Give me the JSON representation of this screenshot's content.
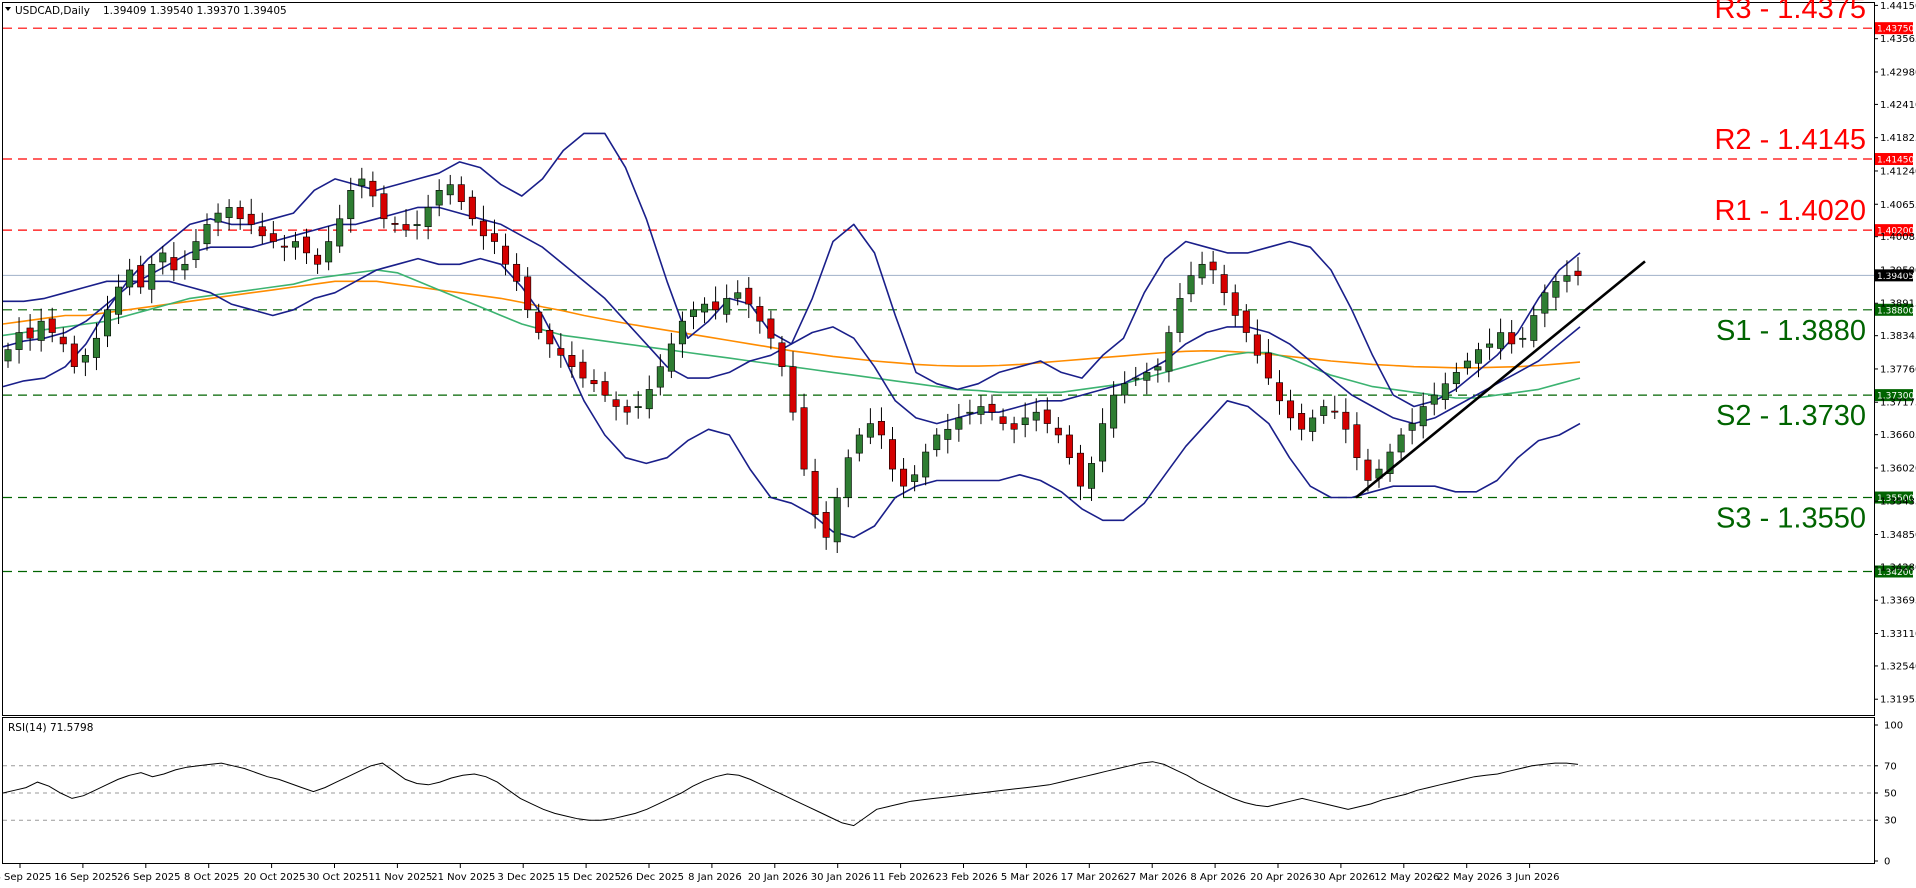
{
  "header": {
    "symbol": "USDCAD,Daily",
    "ohlc": "1.39409 1.39540 1.39370 1.39405"
  },
  "rsi_header": {
    "label": "RSI(14) 71.5798"
  },
  "colors": {
    "resistance": "#ff0000",
    "support": "#006400",
    "bull_candle": "#2e7d32",
    "bear_candle": "#d50000",
    "bollinger": "#1a1f8a",
    "ma_fast": "#3cb371",
    "ma_slow": "#ff8c00",
    "trendline": "#000000",
    "current_price": "#9fb0c8"
  },
  "chart_data": [
    {
      "type": "candlestick",
      "title": "USDCAD,Daily",
      "ylim": [
        1.3166,
        1.4421
      ],
      "y_ticks": [
        "1.44150",
        "1.43565",
        "1.42980",
        "1.42410",
        "1.41825",
        "1.41240",
        "1.40655",
        "1.40085",
        "1.39500",
        "1.38915",
        "1.38345",
        "1.37760",
        "1.37175",
        "1.36605",
        "1.36020",
        "1.35435",
        "1.34850",
        "1.34280",
        "1.33695",
        "1.33110",
        "1.32540",
        "1.31955"
      ],
      "x_ticks": [
        "4 Sep 2025",
        "16 Sep 2025",
        "26 Sep 2025",
        "8 Oct 2025",
        "20 Oct 2025",
        "30 Oct 2025",
        "11 Nov 2025",
        "21 Nov 2025",
        "3 Dec 2025",
        "15 Dec 2025",
        "26 Dec 2025",
        "8 Jan 2026",
        "20 Jan 2026",
        "30 Jan 2026",
        "11 Feb 2026",
        "23 Feb 2026",
        "5 Mar 2026",
        "17 Mar 2026",
        "27 Mar 2026",
        "8 Apr 2026",
        "20 Apr 2026",
        "30 Apr 2026",
        "12 May 2026",
        "22 May 2026",
        "3 Jun 2026"
      ],
      "current_price": {
        "value": 1.39405,
        "label": "1.39405"
      },
      "levels": [
        {
          "name": "R3",
          "value": 1.4375,
          "text": "R3 - 1.4375",
          "badge": "1.43750",
          "kind": "resistance"
        },
        {
          "name": "R2",
          "value": 1.4145,
          "text": "R2 - 1.4145",
          "badge": "1.41450",
          "kind": "resistance"
        },
        {
          "name": "R1",
          "value": 1.402,
          "text": "R1 - 1.4020",
          "badge": "1.40200",
          "kind": "resistance"
        },
        {
          "name": "S1",
          "value": 1.388,
          "text": "S1 - 1.3880",
          "badge": "1.38800",
          "kind": "support"
        },
        {
          "name": "S2",
          "value": 1.373,
          "text": "S2 - 1.3730",
          "badge": "1.37300",
          "kind": "support"
        },
        {
          "name": "S3",
          "value": 1.355,
          "text": "S3 - 1.3550",
          "badge": "1.35500",
          "kind": "support"
        },
        {
          "name": "L",
          "value": 1.342,
          "text": "",
          "badge": "1.34200",
          "kind": "support"
        }
      ],
      "price_path": [
        1.381,
        1.384,
        1.383,
        1.386,
        1.384,
        1.382,
        1.378,
        1.38,
        1.383,
        1.388,
        1.392,
        1.395,
        1.392,
        1.396,
        1.398,
        1.395,
        1.396,
        1.4,
        1.403,
        1.405,
        1.406,
        1.404,
        1.403,
        1.401,
        1.4,
        1.399,
        1.4,
        1.398,
        1.396,
        1.4,
        1.404,
        1.409,
        1.411,
        1.408,
        1.404,
        1.403,
        1.402,
        1.403,
        1.406,
        1.409,
        1.41,
        1.407,
        1.404,
        1.401,
        1.4,
        1.396,
        1.393,
        1.388,
        1.384,
        1.382,
        1.38,
        1.378,
        1.376,
        1.375,
        1.373,
        1.371,
        1.37,
        1.371,
        1.374,
        1.378,
        1.382,
        1.386,
        1.388,
        1.389,
        1.388,
        1.39,
        1.391,
        1.389,
        1.386,
        1.383,
        1.378,
        1.37,
        1.36,
        1.352,
        1.348,
        1.355,
        1.362,
        1.366,
        1.368,
        1.366,
        1.36,
        1.357,
        1.359,
        1.363,
        1.366,
        1.367,
        1.369,
        1.37,
        1.371,
        1.37,
        1.368,
        1.367,
        1.369,
        1.37,
        1.368,
        1.366,
        1.362,
        1.357,
        1.361,
        1.368,
        1.373,
        1.375,
        1.376,
        1.377,
        1.378,
        1.384,
        1.39,
        1.394,
        1.396,
        1.395,
        1.391,
        1.387,
        1.384,
        1.38,
        1.376,
        1.372,
        1.369,
        1.367,
        1.369,
        1.371,
        1.37,
        1.367,
        1.362,
        1.358,
        1.36,
        1.363,
        1.366,
        1.368,
        1.371,
        1.373,
        1.375,
        1.377,
        1.379,
        1.381,
        1.382,
        1.384,
        1.382,
        1.383,
        1.387,
        1.391,
        1.393,
        1.394,
        1.394
      ],
      "series": [
        {
          "name": "Bollinger Upper",
          "values": [
            1.3745,
            1.3755,
            1.376,
            1.378,
            1.382,
            1.388,
            1.393,
            1.397,
            1.4,
            1.403,
            1.404,
            1.403,
            1.403,
            1.404,
            1.405,
            1.409,
            1.411,
            1.41,
            1.409,
            1.41,
            1.411,
            1.412,
            1.414,
            1.413,
            1.41,
            1.408,
            1.411,
            1.416,
            1.419,
            1.419,
            1.413,
            1.404,
            1.393,
            1.383,
            1.386,
            1.39,
            1.389,
            1.384,
            1.382,
            1.39,
            1.4,
            1.403,
            1.398,
            1.387,
            1.377,
            1.375,
            1.374,
            1.375,
            1.377,
            1.378,
            1.379,
            1.377,
            1.376,
            1.38,
            1.383,
            1.391,
            1.397,
            1.4,
            1.399,
            1.398,
            1.398,
            1.399,
            1.4,
            1.399,
            1.395,
            1.388,
            1.38,
            1.373,
            1.371,
            1.372,
            1.374,
            1.377,
            1.38,
            1.384,
            1.39,
            1.395,
            1.398
          ]
        },
        {
          "name": "Bollinger Middle",
          "values": [
            1.3815,
            1.3825,
            1.383,
            1.384,
            1.386,
            1.389,
            1.392,
            1.394,
            1.396,
            1.398,
            1.399,
            1.399,
            1.399,
            1.4,
            1.401,
            1.402,
            1.403,
            1.403,
            1.404,
            1.405,
            1.406,
            1.406,
            1.405,
            1.404,
            1.403,
            1.401,
            1.399,
            1.396,
            1.393,
            1.39,
            1.386,
            1.382,
            1.378,
            1.376,
            1.376,
            1.377,
            1.379,
            1.38,
            1.382,
            1.384,
            1.385,
            1.383,
            1.378,
            1.372,
            1.369,
            1.368,
            1.369,
            1.37,
            1.37,
            1.371,
            1.372,
            1.372,
            1.373,
            1.374,
            1.375,
            1.377,
            1.379,
            1.382,
            1.384,
            1.385,
            1.385,
            1.384,
            1.382,
            1.379,
            1.376,
            1.373,
            1.371,
            1.369,
            1.368,
            1.369,
            1.371,
            1.373,
            1.375,
            1.377,
            1.379,
            1.382,
            1.385
          ]
        },
        {
          "name": "Bollinger Lower",
          "values": [
            1.3895,
            1.3895,
            1.39,
            1.391,
            1.392,
            1.393,
            1.393,
            1.393,
            1.393,
            1.392,
            1.391,
            1.389,
            1.388,
            1.387,
            1.388,
            1.39,
            1.391,
            1.393,
            1.395,
            1.396,
            1.397,
            1.396,
            1.396,
            1.397,
            1.396,
            1.392,
            1.387,
            1.38,
            1.372,
            1.366,
            1.362,
            1.361,
            1.362,
            1.365,
            1.367,
            1.366,
            1.36,
            1.355,
            1.354,
            1.352,
            1.349,
            1.348,
            1.35,
            1.355,
            1.357,
            1.358,
            1.358,
            1.358,
            1.358,
            1.359,
            1.358,
            1.356,
            1.353,
            1.351,
            1.351,
            1.354,
            1.359,
            1.364,
            1.368,
            1.372,
            1.371,
            1.368,
            1.362,
            1.357,
            1.355,
            1.355,
            1.356,
            1.357,
            1.357,
            1.357,
            1.356,
            1.356,
            1.358,
            1.362,
            1.365,
            1.366,
            1.368
          ]
        },
        {
          "name": "MA fast",
          "values": [
            1.3835,
            1.384,
            1.3845,
            1.385,
            1.3855,
            1.386,
            1.387,
            1.388,
            1.389,
            1.39,
            1.3905,
            1.391,
            1.3915,
            1.392,
            1.3925,
            1.3935,
            1.394,
            1.3945,
            1.395,
            1.3945,
            1.393,
            1.3915,
            1.39,
            1.3885,
            1.387,
            1.3855,
            1.3845,
            1.3835,
            1.383,
            1.3825,
            1.382,
            1.3815,
            1.381,
            1.3805,
            1.38,
            1.3795,
            1.379,
            1.3785,
            1.378,
            1.3775,
            1.377,
            1.3765,
            1.376,
            1.3755,
            1.375,
            1.3745,
            1.374,
            1.3738,
            1.3735,
            1.3735,
            1.3735,
            1.3735,
            1.374,
            1.3745,
            1.375,
            1.376,
            1.377,
            1.378,
            1.379,
            1.38,
            1.3805,
            1.3805,
            1.3795,
            1.378,
            1.3765,
            1.3755,
            1.3745,
            1.374,
            1.3735,
            1.373,
            1.3725,
            1.3725,
            1.373,
            1.3735,
            1.374,
            1.375,
            1.376
          ]
        },
        {
          "name": "MA slow",
          "values": [
            1.3855,
            1.386,
            1.3865,
            1.387,
            1.387,
            1.3875,
            1.388,
            1.3885,
            1.389,
            1.3895,
            1.39,
            1.3905,
            1.391,
            1.3915,
            1.392,
            1.3925,
            1.393,
            1.393,
            1.393,
            1.3925,
            1.392,
            1.3915,
            1.391,
            1.3905,
            1.39,
            1.3893,
            1.3885,
            1.3878,
            1.387,
            1.3863,
            1.3856,
            1.385,
            1.3844,
            1.3838,
            1.3832,
            1.3826,
            1.382,
            1.3814,
            1.3808,
            1.3803,
            1.3798,
            1.3794,
            1.379,
            1.3787,
            1.3784,
            1.3782,
            1.3781,
            1.3781,
            1.3782,
            1.3784,
            1.3787,
            1.379,
            1.3793,
            1.3796,
            1.3799,
            1.3802,
            1.3805,
            1.3807,
            1.3808,
            1.3807,
            1.3805,
            1.3802,
            1.3798,
            1.3794,
            1.379,
            1.3787,
            1.3784,
            1.3782,
            1.378,
            1.3779,
            1.3778,
            1.3778,
            1.3779,
            1.378,
            1.3782,
            1.3785,
            1.3788
          ]
        }
      ],
      "trendline": {
        "from": [
          "30 Apr 2026",
          1.355
        ],
        "to": [
          "after 3 Jun 2026",
          1.3965
        ]
      }
    },
    {
      "type": "line",
      "title": "RSI(14) 71.5798",
      "ylim": [
        0,
        100
      ],
      "y_ticks": [
        "100",
        "70",
        "50",
        "30",
        "0"
      ],
      "values": [
        50,
        52,
        54,
        58,
        55,
        50,
        46,
        48,
        52,
        56,
        60,
        63,
        65,
        62,
        64,
        67,
        69,
        70,
        71,
        72,
        70,
        68,
        65,
        62,
        60,
        57,
        54,
        51,
        54,
        58,
        62,
        66,
        70,
        72,
        66,
        60,
        57,
        56,
        58,
        61,
        63,
        64,
        62,
        58,
        52,
        46,
        42,
        38,
        35,
        33,
        31,
        30,
        30,
        31,
        33,
        35,
        38,
        42,
        46,
        50,
        55,
        59,
        62,
        64,
        63,
        60,
        56,
        52,
        48,
        44,
        40,
        36,
        32,
        28,
        26,
        32,
        38,
        40,
        42,
        44,
        45,
        46,
        47,
        48,
        49,
        50,
        51,
        52,
        53,
        54,
        55,
        56,
        58,
        60,
        62,
        64,
        66,
        68,
        70,
        72,
        73,
        71,
        67,
        63,
        58,
        54,
        50,
        46,
        43,
        41,
        40,
        42,
        44,
        46,
        44,
        42,
        40,
        38,
        40,
        42,
        45,
        47,
        49,
        52,
        54,
        56,
        58,
        60,
        62,
        63,
        64,
        66,
        68,
        70,
        71,
        72,
        72,
        71
      ]
    }
  ]
}
